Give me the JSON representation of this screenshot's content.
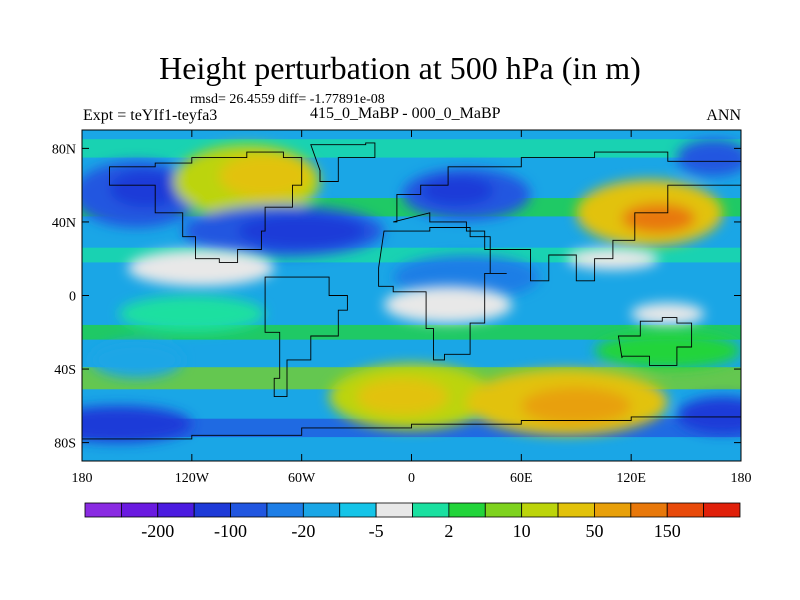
{
  "title": "Height perturbation at 500 hPa (in m)",
  "stats_line": "rmsd= 26.4559 diff= -1.77891e-08",
  "experiment": "Expt = teYIf1-teyfa3",
  "period": "415_0_MaBP - 000_0_MaBP",
  "season": "ANN",
  "lat_labels": [
    {
      "value": 80,
      "label": "80N"
    },
    {
      "value": 40,
      "label": "40N"
    },
    {
      "value": 0,
      "label": "0"
    },
    {
      "value": -40,
      "label": "40S"
    },
    {
      "value": -80,
      "label": "80S"
    }
  ],
  "lon_labels": [
    {
      "value": -180,
      "label": "180"
    },
    {
      "value": -120,
      "label": "120W"
    },
    {
      "value": -60,
      "label": "60W"
    },
    {
      "value": 0,
      "label": "0"
    },
    {
      "value": 60,
      "label": "60E"
    },
    {
      "value": 120,
      "label": "120E"
    },
    {
      "value": 180,
      "label": "180"
    }
  ],
  "colorbar": {
    "colors": [
      "#8a2be2",
      "#6a1ae0",
      "#4b1be0",
      "#1e3ad8",
      "#2156e0",
      "#1e7ee6",
      "#1aa6e6",
      "#15c4e8",
      "#e8e8e8",
      "#1ae0a0",
      "#22d43a",
      "#7ed21e",
      "#bcd40a",
      "#e2c20a",
      "#e8a00a",
      "#e8780a",
      "#e84a0a",
      "#e0200a"
    ],
    "labels": [
      {
        "boundary": 2,
        "text": "-200"
      },
      {
        "boundary": 4,
        "text": "-100"
      },
      {
        "boundary": 6,
        "text": "-20"
      },
      {
        "boundary": 8,
        "text": "-5"
      },
      {
        "boundary": 10,
        "text": "2"
      },
      {
        "boundary": 12,
        "text": "10"
      },
      {
        "boundary": 14,
        "text": "50"
      },
      {
        "boundary": 16,
        "text": "150"
      }
    ]
  },
  "field_blobs": [
    {
      "lon": -150,
      "lat": 55,
      "rx": 35,
      "ry": 18,
      "color": "#2156e0"
    },
    {
      "lon": -145,
      "lat": 58,
      "rx": 20,
      "ry": 10,
      "color": "#1e3ad8"
    },
    {
      "lon": -90,
      "lat": 62,
      "rx": 40,
      "ry": 20,
      "color": "#bcd40a"
    },
    {
      "lon": -80,
      "lat": 65,
      "rx": 25,
      "ry": 12,
      "color": "#e2c20a"
    },
    {
      "lon": -70,
      "lat": 35,
      "rx": 55,
      "ry": 14,
      "color": "#2156e0"
    },
    {
      "lon": -60,
      "lat": 35,
      "rx": 35,
      "ry": 9,
      "color": "#1e3ad8"
    },
    {
      "lon": 30,
      "lat": 55,
      "rx": 35,
      "ry": 14,
      "color": "#2156e0"
    },
    {
      "lon": 25,
      "lat": 57,
      "rx": 20,
      "ry": 8,
      "color": "#1e3ad8"
    },
    {
      "lon": 130,
      "lat": 45,
      "rx": 40,
      "ry": 18,
      "color": "#e2c20a"
    },
    {
      "lon": 135,
      "lat": 42,
      "rx": 20,
      "ry": 8,
      "color": "#e8780a"
    },
    {
      "lon": 165,
      "lat": 75,
      "rx": 20,
      "ry": 10,
      "color": "#2156e0"
    },
    {
      "lon": 30,
      "lat": 10,
      "rx": 40,
      "ry": 12,
      "color": "#1e7ee6"
    },
    {
      "lon": -120,
      "lat": -10,
      "rx": 40,
      "ry": 10,
      "color": "#1ae0a0"
    },
    {
      "lon": -150,
      "lat": -35,
      "rx": 25,
      "ry": 10,
      "color": "#1aa6e6"
    },
    {
      "lon": 0,
      "lat": -55,
      "rx": 45,
      "ry": 18,
      "color": "#bcd40a"
    },
    {
      "lon": -5,
      "lat": -55,
      "rx": 25,
      "ry": 10,
      "color": "#e2c20a"
    },
    {
      "lon": 85,
      "lat": -58,
      "rx": 55,
      "ry": 18,
      "color": "#e2c20a"
    },
    {
      "lon": 90,
      "lat": -60,
      "rx": 30,
      "ry": 10,
      "color": "#e8a00a"
    },
    {
      "lon": -160,
      "lat": -70,
      "rx": 40,
      "ry": 10,
      "color": "#1e3ad8"
    },
    {
      "lon": 170,
      "lat": -65,
      "rx": 25,
      "ry": 10,
      "color": "#1e3ad8"
    },
    {
      "lon": 140,
      "lat": -30,
      "rx": 40,
      "ry": 10,
      "color": "#22d43a"
    }
  ],
  "grey_blobs": [
    {
      "lon": -115,
      "lat": 15,
      "rx": 40,
      "ry": 10
    },
    {
      "lon": 20,
      "lat": -5,
      "rx": 35,
      "ry": 10
    },
    {
      "lon": 110,
      "lat": 20,
      "rx": 25,
      "ry": 6
    },
    {
      "lon": 140,
      "lat": -10,
      "rx": 20,
      "ry": 6
    }
  ],
  "continents": [
    {
      "name": "north-america",
      "points": [
        [
          -165,
          70
        ],
        [
          -140,
          72
        ],
        [
          -120,
          75
        ],
        [
          -90,
          78
        ],
        [
          -70,
          75
        ],
        [
          -60,
          60
        ],
        [
          -65,
          48
        ],
        [
          -80,
          35
        ],
        [
          -82,
          25
        ],
        [
          -95,
          18
        ],
        [
          -105,
          20
        ],
        [
          -118,
          32
        ],
        [
          -125,
          45
        ],
        [
          -140,
          60
        ],
        [
          -165,
          65
        ]
      ]
    },
    {
      "name": "greenland",
      "points": [
        [
          -55,
          82
        ],
        [
          -25,
          83
        ],
        [
          -20,
          75
        ],
        [
          -40,
          62
        ],
        [
          -50,
          68
        ]
      ]
    },
    {
      "name": "south-america",
      "points": [
        [
          -80,
          10
        ],
        [
          -60,
          10
        ],
        [
          -45,
          0
        ],
        [
          -35,
          -8
        ],
        [
          -40,
          -22
        ],
        [
          -55,
          -35
        ],
        [
          -68,
          -55
        ],
        [
          -75,
          -45
        ],
        [
          -72,
          -20
        ],
        [
          -80,
          -5
        ]
      ]
    },
    {
      "name": "africa",
      "points": [
        [
          -15,
          35
        ],
        [
          10,
          37
        ],
        [
          32,
          32
        ],
        [
          43,
          12
        ],
        [
          52,
          12
        ],
        [
          40,
          -15
        ],
        [
          32,
          -32
        ],
        [
          18,
          -35
        ],
        [
          12,
          -18
        ],
        [
          8,
          2
        ],
        [
          -10,
          5
        ],
        [
          -18,
          15
        ]
      ]
    },
    {
      "name": "eurasia",
      "points": [
        [
          -10,
          40
        ],
        [
          -8,
          55
        ],
        [
          5,
          60
        ],
        [
          20,
          70
        ],
        [
          60,
          75
        ],
        [
          100,
          78
        ],
        [
          140,
          73
        ],
        [
          180,
          70
        ],
        [
          180,
          60
        ],
        [
          160,
          60
        ],
        [
          140,
          45
        ],
        [
          122,
          30
        ],
        [
          110,
          20
        ],
        [
          100,
          8
        ],
        [
          90,
          22
        ],
        [
          75,
          8
        ],
        [
          65,
          25
        ],
        [
          55,
          25
        ],
        [
          40,
          35
        ],
        [
          30,
          40
        ],
        [
          10,
          45
        ]
      ]
    },
    {
      "name": "australia",
      "points": [
        [
          113,
          -22
        ],
        [
          125,
          -14
        ],
        [
          137,
          -12
        ],
        [
          145,
          -15
        ],
        [
          153,
          -28
        ],
        [
          145,
          -38
        ],
        [
          130,
          -33
        ],
        [
          115,
          -34
        ]
      ]
    },
    {
      "name": "antarctica",
      "points": [
        [
          -180,
          -78
        ],
        [
          -120,
          -76
        ],
        [
          -60,
          -72
        ],
        [
          0,
          -70
        ],
        [
          60,
          -68
        ],
        [
          120,
          -66
        ],
        [
          180,
          -70
        ],
        [
          180,
          -90
        ],
        [
          -180,
          -90
        ]
      ]
    }
  ]
}
